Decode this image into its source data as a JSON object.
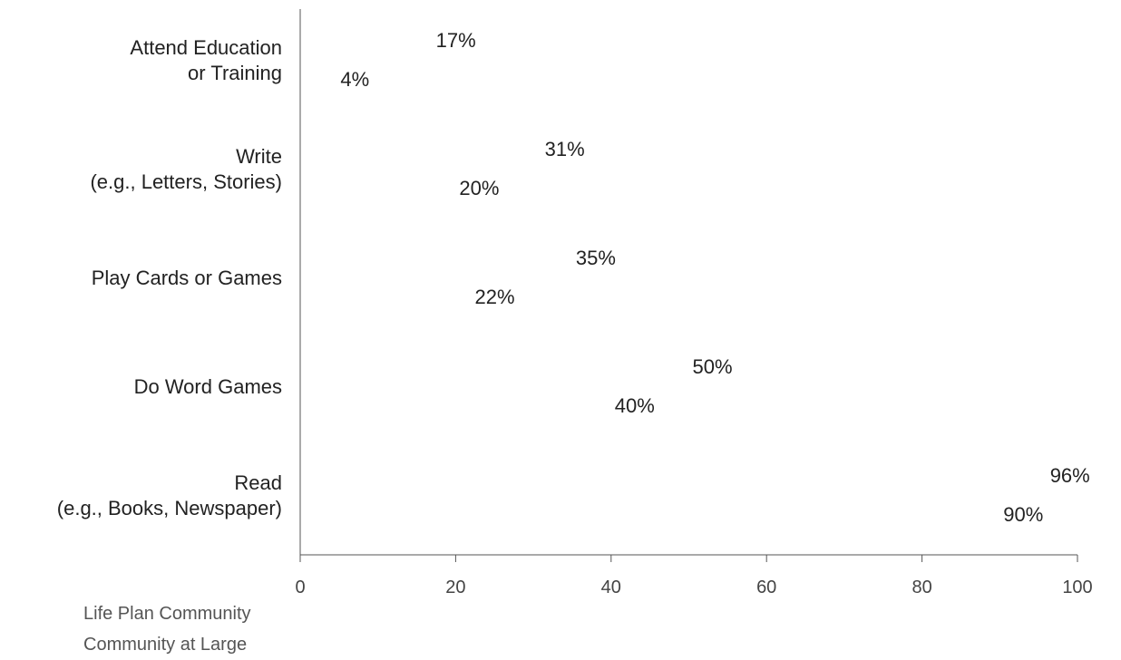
{
  "chart_data": {
    "type": "bar",
    "categories": [
      [
        "Attend Education",
        "or Training"
      ],
      [
        "Write",
        "(e.g., Letters, Stories)"
      ],
      [
        "Play Cards or Games"
      ],
      [
        "Do Word Games"
      ],
      [
        "Read",
        "(e.g., Books, Newspaper)"
      ]
    ],
    "series": [
      {
        "name": "Life Plan Community",
        "values": [
          17,
          31,
          35,
          50,
          96
        ],
        "labels": [
          "17%",
          "31%",
          "35%",
          "50%",
          "96%"
        ]
      },
      {
        "name": "Community at Large",
        "values": [
          4,
          20,
          22,
          40,
          90
        ],
        "labels": [
          "4%",
          "20%",
          "22%",
          "40%",
          "90%"
        ]
      }
    ],
    "orientation": "horizontal",
    "xlim": [
      0,
      100
    ],
    "xticks": [
      0,
      20,
      40,
      60,
      80,
      100
    ],
    "xtick_labels": [
      "0",
      "20",
      "40",
      "60",
      "80",
      "100"
    ],
    "grid": false,
    "legend_position": "bottom-left",
    "title": "",
    "xlabel": "",
    "ylabel": ""
  }
}
